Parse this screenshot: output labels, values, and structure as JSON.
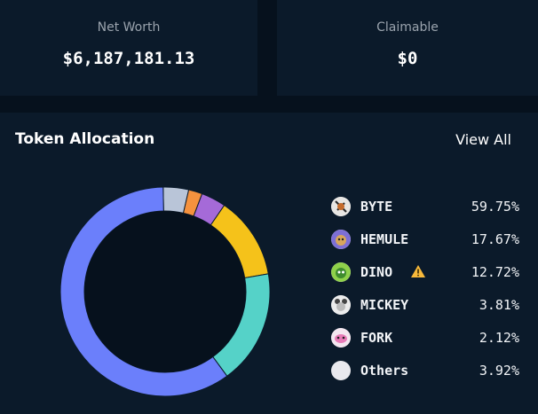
{
  "summary": {
    "net_worth_label": "Net Worth",
    "net_worth_value": "$6,187,181.13",
    "claimable_label": "Claimable",
    "claimable_value": "$0"
  },
  "allocation": {
    "title": "Token Allocation",
    "view_all_label": "View All",
    "tokens": [
      {
        "name": "BYTE",
        "percent_label": "59.75%",
        "percent": 59.75,
        "color": "#6b7ffb",
        "icon": "byte-token-icon"
      },
      {
        "name": "HEMULE",
        "percent_label": "17.67%",
        "percent": 17.67,
        "color": "#55d2c8",
        "icon": "hemule-token-icon"
      },
      {
        "name": "DINO",
        "percent_label": "12.72%",
        "percent": 12.72,
        "color": "#f5c21a",
        "icon": "dino-token-icon",
        "warning": true
      },
      {
        "name": "MICKEY",
        "percent_label": "3.81%",
        "percent": 3.81,
        "color": "#a56ad8",
        "icon": "mickey-token-icon"
      },
      {
        "name": "FORK",
        "percent_label": "2.12%",
        "percent": 2.12,
        "color": "#f5923e",
        "icon": "fork-token-icon"
      },
      {
        "name": "Others",
        "percent_label": "3.92%",
        "percent": 3.92,
        "color": "#b9c5d8",
        "icon": "others-token-icon"
      }
    ]
  },
  "colors": {
    "background": "#06111d",
    "card": "#0b1a2a",
    "warning": "#f7b93b"
  }
}
